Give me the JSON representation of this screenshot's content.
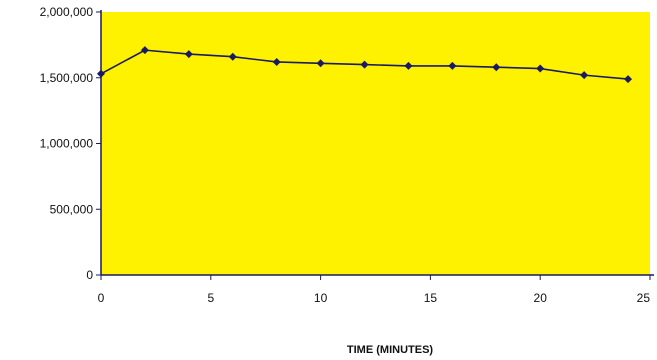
{
  "chart_data": {
    "type": "line",
    "title": "",
    "xlabel": "TIME (MINUTES)",
    "ylabel": "",
    "xlim": [
      0,
      25
    ],
    "ylim": [
      0,
      2000000
    ],
    "x_ticks": [
      0,
      5,
      10,
      15,
      20,
      25
    ],
    "x_tick_labels": [
      "0",
      "5",
      "10",
      "15",
      "20",
      "25"
    ],
    "y_ticks": [
      0,
      500000,
      1000000,
      1500000,
      2000000
    ],
    "y_tick_labels": [
      "0",
      "500,000",
      "1,000,000",
      "1,500,000",
      "2,000,000"
    ],
    "grid": false,
    "legend": "none",
    "plot_background": "#FFF200",
    "series": [
      {
        "color": "#1A1A5E",
        "x": [
          0,
          2,
          4,
          6,
          8,
          10,
          12,
          14,
          16,
          18,
          20,
          22,
          24
        ],
        "y": [
          1530000,
          1710000,
          1680000,
          1660000,
          1620000,
          1610000,
          1600000,
          1590000,
          1590000,
          1580000,
          1570000,
          1520000,
          1490000
        ]
      }
    ]
  }
}
